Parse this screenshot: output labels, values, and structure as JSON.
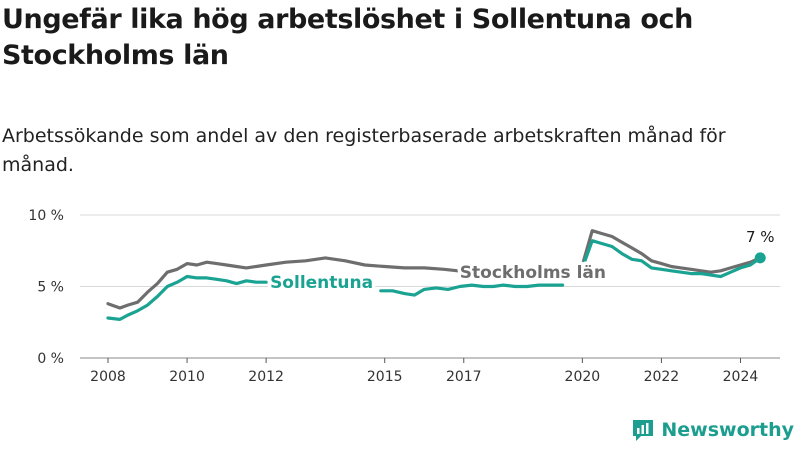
{
  "title": "Ungefär lika hög arbetslöshet i Sollentuna och Stockholms län",
  "subtitle": "Arbetssökande som andel av den registerbaserade arbetskraften månad för månad.",
  "brand": "Newsworthy",
  "colors": {
    "sollentuna": "#1aa392",
    "stockholm": "#6e6e6e",
    "grid": "#d9d9d9",
    "brand": "#1b9e8f"
  },
  "chart_data": {
    "type": "line",
    "title": "Ungefär lika hög arbetslöshet i Sollentuna och Stockholms län",
    "xlabel": "",
    "ylabel": "",
    "ylim": [
      0,
      10
    ],
    "xlim": [
      2008.0,
      2025.0
    ],
    "y_ticks": [
      0,
      5,
      10
    ],
    "y_tick_labels": [
      "0 %",
      "5 %",
      "10 %"
    ],
    "x_ticks": [
      2008,
      2010,
      2012,
      2015,
      2017,
      2020,
      2022,
      2024
    ],
    "x_tick_labels": [
      "2008",
      "2010",
      "2012",
      "2015",
      "2017",
      "2020",
      "2022",
      "2024"
    ],
    "grid": true,
    "end_label": "7 %",
    "series": [
      {
        "name": "Stockholms län",
        "x": [
          2008.0,
          2008.3,
          2008.5,
          2008.75,
          2009.0,
          2009.25,
          2009.5,
          2009.75,
          2010.0,
          2010.25,
          2010.5,
          2010.75,
          2011.0,
          2011.25,
          2011.5,
          2011.75,
          2012.0,
          2012.5,
          2013.0,
          2013.5,
          2014.0,
          2014.5,
          2015.0,
          2015.5,
          2016.0,
          2016.5,
          2016.85,
          null,
          2020.0,
          2020.25,
          2020.5,
          2020.75,
          2021.0,
          2021.25,
          2021.5,
          2021.75,
          2022.0,
          2022.25,
          2022.5,
          2022.75,
          2023.0,
          2023.25,
          2023.5,
          2023.75,
          2024.0,
          2024.25,
          2024.5
        ],
        "values": [
          3.8,
          3.5,
          3.7,
          3.9,
          4.6,
          5.2,
          6.0,
          6.2,
          6.6,
          6.5,
          6.7,
          6.6,
          6.5,
          6.4,
          6.3,
          6.4,
          6.5,
          6.7,
          6.8,
          7.0,
          6.8,
          6.5,
          6.4,
          6.3,
          6.3,
          6.2,
          6.1,
          null,
          6.5,
          8.9,
          8.7,
          8.5,
          8.1,
          7.7,
          7.3,
          6.8,
          6.6,
          6.4,
          6.3,
          6.2,
          6.1,
          6.0,
          6.1,
          6.3,
          6.5,
          6.7,
          7.0
        ]
      },
      {
        "name": "Sollentuna",
        "x": [
          2008.0,
          2008.3,
          2008.5,
          2008.75,
          2009.0,
          2009.25,
          2009.5,
          2009.75,
          2010.0,
          2010.25,
          2010.5,
          2010.75,
          2011.0,
          2011.25,
          2011.5,
          2011.75,
          2012.0,
          null,
          2014.9,
          2015.2,
          2015.5,
          2015.75,
          2016.0,
          2016.3,
          2016.6,
          2016.9,
          2017.2,
          2017.5,
          2017.75,
          2018.0,
          2018.3,
          2018.6,
          2018.9,
          2019.2,
          2019.5,
          null,
          2020.0,
          2020.25,
          2020.5,
          2020.75,
          2021.0,
          2021.25,
          2021.5,
          2021.75,
          2022.0,
          2022.25,
          2022.5,
          2022.75,
          2023.0,
          2023.25,
          2023.5,
          2023.75,
          2024.0,
          2024.25,
          2024.5
        ],
        "values": [
          2.8,
          2.7,
          3.0,
          3.3,
          3.7,
          4.3,
          5.0,
          5.3,
          5.7,
          5.6,
          5.6,
          5.5,
          5.4,
          5.2,
          5.4,
          5.3,
          5.3,
          null,
          4.7,
          4.7,
          4.5,
          4.4,
          4.8,
          4.9,
          4.8,
          5.0,
          5.1,
          5.0,
          5.0,
          5.1,
          5.0,
          5.0,
          5.1,
          5.1,
          5.1,
          null,
          6.3,
          8.2,
          8.0,
          7.8,
          7.3,
          6.9,
          6.8,
          6.3,
          6.2,
          6.1,
          6.0,
          5.9,
          5.9,
          5.8,
          5.7,
          6.0,
          6.3,
          6.5,
          7.0
        ]
      }
    ]
  }
}
